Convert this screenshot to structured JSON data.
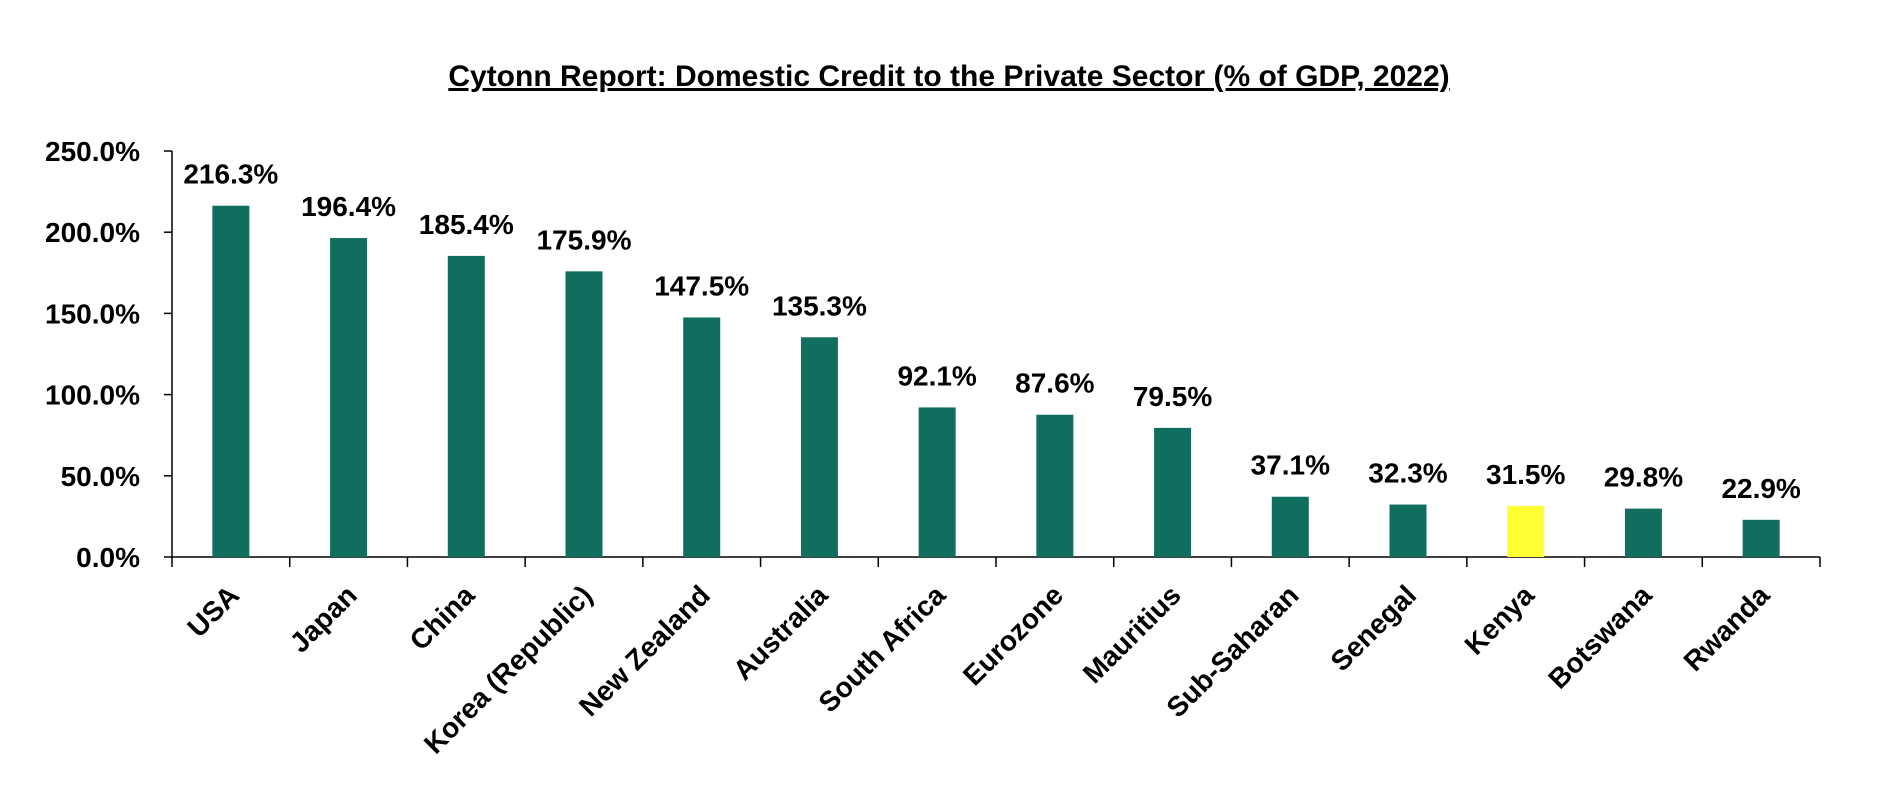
{
  "chart_data": {
    "type": "bar",
    "title": "Cytonn Report: Domestic Credit to the Private Sector (% of GDP, 2022)",
    "xlabel": "",
    "ylabel": "",
    "ylim": [
      0,
      250
    ],
    "yticks": [
      "0.0%",
      "50.0%",
      "100.0%",
      "150.0%",
      "200.0%",
      "250.0%"
    ],
    "ytick_values": [
      0,
      50,
      100,
      150,
      200,
      250
    ],
    "grid": false,
    "categories": [
      "USA",
      "Japan",
      "China",
      "Korea (Republic)",
      "New Zealand",
      "Australia",
      "South Africa",
      "Eurozone",
      "Mauritius",
      "Sub-Saharan",
      "Senegal",
      "Kenya",
      "Botswana",
      "Rwanda"
    ],
    "values": [
      216.3,
      196.4,
      185.4,
      175.9,
      147.5,
      135.3,
      92.1,
      87.6,
      79.5,
      37.1,
      32.3,
      31.5,
      29.8,
      22.9
    ],
    "data_labels": [
      "216.3%",
      "196.4%",
      "185.4%",
      "175.9%",
      "147.5%",
      "135.3%",
      "92.1%",
      "87.6%",
      "79.5%",
      "37.1%",
      "32.3%",
      "31.5%",
      "29.8%",
      "22.9%"
    ],
    "colors": {
      "bar": "#0f6e5e",
      "highlight": "#ffff33",
      "axis": "#000000"
    },
    "highlight_category": "Kenya"
  }
}
